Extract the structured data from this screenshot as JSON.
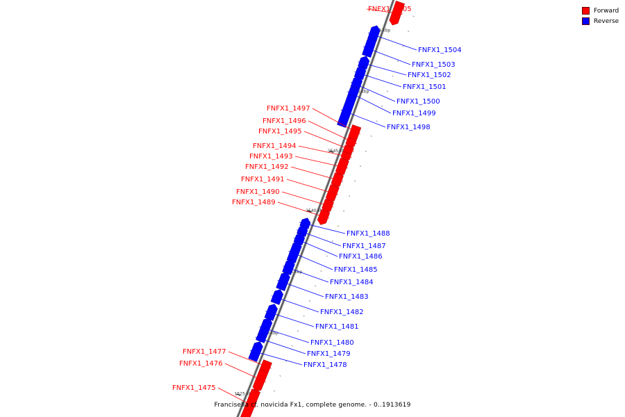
{
  "legend": {
    "forward_label": "Forward",
    "reverse_label": "Reverse",
    "forward_color": "#ff0000",
    "reverse_color": "#0000ff"
  },
  "footer": {
    "caption": "Francisella cf. novicida Fx1, complete genome. - 0..1913619"
  },
  "ticks": [
    {
      "label": "1555 kbp"
    },
    {
      "label": "1550 kbp"
    },
    {
      "label": "1545 kbp"
    },
    {
      "label": "1540 kbp"
    },
    {
      "label": "1535 kbp"
    },
    {
      "label": "1530 kbp"
    },
    {
      "label": "1525 kbp"
    }
  ],
  "genes": [
    {
      "name": "FNFX1_1505",
      "strand": "forward"
    },
    {
      "name": "FNFX1_1504",
      "strand": "reverse"
    },
    {
      "name": "FNFX1_1503",
      "strand": "reverse"
    },
    {
      "name": "FNFX1_1502",
      "strand": "reverse"
    },
    {
      "name": "FNFX1_1501",
      "strand": "reverse"
    },
    {
      "name": "FNFX1_1500",
      "strand": "reverse"
    },
    {
      "name": "FNFX1_1499",
      "strand": "reverse"
    },
    {
      "name": "FNFX1_1498",
      "strand": "reverse"
    },
    {
      "name": "FNFX1_1497",
      "strand": "forward"
    },
    {
      "name": "FNFX1_1496",
      "strand": "forward"
    },
    {
      "name": "FNFX1_1495",
      "strand": "forward"
    },
    {
      "name": "FNFX1_1494",
      "strand": "forward"
    },
    {
      "name": "FNFX1_1493",
      "strand": "forward"
    },
    {
      "name": "FNFX1_1492",
      "strand": "forward"
    },
    {
      "name": "FNFX1_1491",
      "strand": "forward"
    },
    {
      "name": "FNFX1_1490",
      "strand": "forward"
    },
    {
      "name": "FNFX1_1489",
      "strand": "forward"
    },
    {
      "name": "FNFX1_1488",
      "strand": "reverse"
    },
    {
      "name": "FNFX1_1487",
      "strand": "reverse"
    },
    {
      "name": "FNFX1_1486",
      "strand": "reverse"
    },
    {
      "name": "FNFX1_1485",
      "strand": "reverse"
    },
    {
      "name": "FNFX1_1484",
      "strand": "reverse"
    },
    {
      "name": "FNFX1_1483",
      "strand": "reverse"
    },
    {
      "name": "FNFX1_1482",
      "strand": "reverse"
    },
    {
      "name": "FNFX1_1481",
      "strand": "reverse"
    },
    {
      "name": "FNFX1_1480",
      "strand": "reverse"
    },
    {
      "name": "FNFX1_1479",
      "strand": "reverse"
    },
    {
      "name": "FNFX1_1478",
      "strand": "reverse"
    },
    {
      "name": "FNFX1_1477",
      "strand": "forward"
    },
    {
      "name": "FNFX1_1476",
      "strand": "forward"
    },
    {
      "name": "FNFX1_1475",
      "strand": "forward"
    }
  ]
}
